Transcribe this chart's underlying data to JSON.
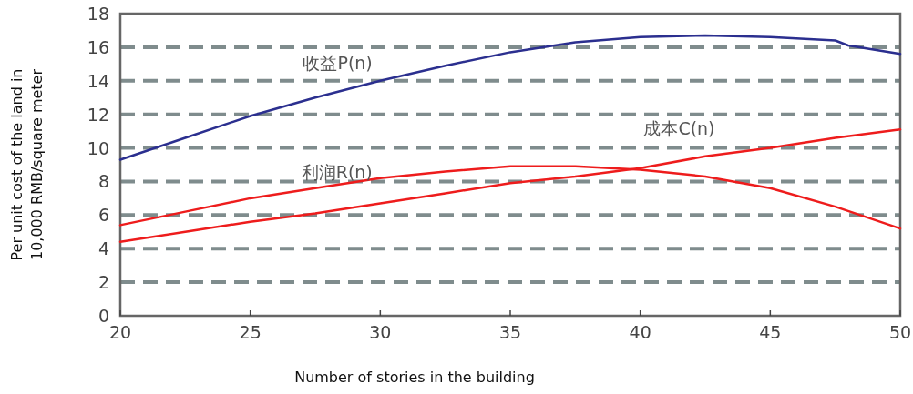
{
  "chart_data": {
    "type": "line",
    "xlabel": "Number of stories in the building",
    "ylabel": "Per unit cost of the land in 10,000 RMB/square meter",
    "xlim": [
      20,
      50
    ],
    "xticks": [
      20,
      25,
      30,
      35,
      40,
      45,
      50
    ],
    "ylim": [
      0,
      18
    ],
    "yticks": [
      0,
      2,
      4,
      6,
      8,
      10,
      12,
      14,
      16,
      18
    ],
    "grid": "y",
    "marker": "none",
    "line_style": "solid",
    "series": [
      {
        "name": "收益P(n)",
        "color": "#2b2f8f",
        "x": [
          20,
          22.5,
          25,
          27.5,
          30,
          32.5,
          35,
          37.5,
          40,
          42.5,
          45,
          47.5,
          48,
          50
        ],
        "values": [
          9.3,
          10.6,
          11.9,
          13.0,
          14.0,
          14.9,
          15.7,
          16.3,
          16.6,
          16.7,
          16.6,
          16.4,
          16.1,
          15.6
        ]
      },
      {
        "name": "利润R(n)",
        "color": "#ee1c1c",
        "x": [
          20,
          22.5,
          25,
          27.5,
          30,
          32.5,
          35,
          37.5,
          40,
          42.5,
          45,
          47.5,
          50
        ],
        "values": [
          5.4,
          6.2,
          7.0,
          7.6,
          8.2,
          8.6,
          8.9,
          8.9,
          8.7,
          8.3,
          7.6,
          6.5,
          5.2
        ]
      },
      {
        "name": "成本C(n)",
        "color": "#ee1c1c",
        "x": [
          20,
          22.5,
          25,
          27.5,
          30,
          32.5,
          35,
          37.5,
          40,
          42.5,
          45,
          47.5,
          50
        ],
        "values": [
          4.4,
          5.0,
          5.6,
          6.1,
          6.7,
          7.3,
          7.9,
          8.3,
          8.8,
          9.5,
          10.0,
          10.6,
          11.1
        ]
      }
    ]
  }
}
